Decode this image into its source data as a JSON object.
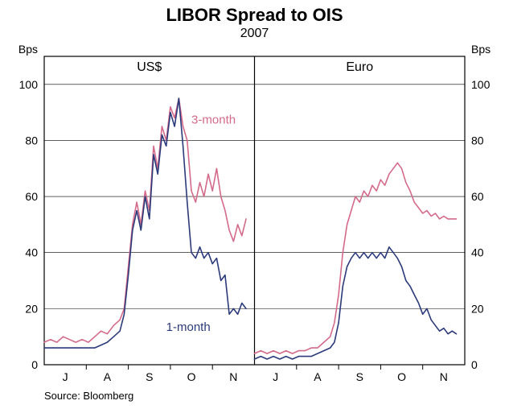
{
  "title": "LIBOR Spread to OIS",
  "subtitle": "2007",
  "source": "Source: Bloomberg",
  "y_axis_label": "Bps",
  "ylim": [
    0,
    110
  ],
  "ytick_step": 20,
  "y_ticks": [
    0,
    20,
    40,
    60,
    80,
    100
  ],
  "x_labels": [
    "J",
    "A",
    "S",
    "O",
    "N"
  ],
  "colors": {
    "three_month": "#d46a8a",
    "one_month": "#2b3a7a",
    "grid": "#000000",
    "frame": "#000000",
    "background": "#ffffff"
  },
  "line_width": 1.6,
  "title_fontsize": 22,
  "subtitle_fontsize": 16,
  "panel_title_fontsize": 16,
  "tick_fontsize": 14,
  "series_label_fontsize": 15,
  "panels": [
    {
      "title": "US$",
      "series": [
        {
          "name": "3-month",
          "label_text": "3-month",
          "label_color": "#d46a8a",
          "label_pos": [
            70,
            86
          ],
          "data": [
            [
              0,
              8
            ],
            [
              3,
              9
            ],
            [
              6,
              8
            ],
            [
              9,
              10
            ],
            [
              12,
              9
            ],
            [
              15,
              8
            ],
            [
              18,
              9
            ],
            [
              21,
              8
            ],
            [
              24,
              10
            ],
            [
              27,
              12
            ],
            [
              30,
              11
            ],
            [
              33,
              14
            ],
            [
              36,
              16
            ],
            [
              38,
              20
            ],
            [
              40,
              35
            ],
            [
              42,
              50
            ],
            [
              44,
              58
            ],
            [
              46,
              50
            ],
            [
              48,
              62
            ],
            [
              50,
              55
            ],
            [
              52,
              78
            ],
            [
              54,
              70
            ],
            [
              56,
              85
            ],
            [
              58,
              80
            ],
            [
              60,
              92
            ],
            [
              62,
              88
            ],
            [
              64,
              95
            ],
            [
              66,
              85
            ],
            [
              68,
              80
            ],
            [
              70,
              62
            ],
            [
              72,
              58
            ],
            [
              74,
              65
            ],
            [
              76,
              60
            ],
            [
              78,
              68
            ],
            [
              80,
              62
            ],
            [
              82,
              70
            ],
            [
              84,
              60
            ],
            [
              86,
              55
            ],
            [
              88,
              48
            ],
            [
              90,
              44
            ],
            [
              92,
              50
            ],
            [
              94,
              46
            ],
            [
              96,
              52
            ]
          ]
        },
        {
          "name": "1-month",
          "label_text": "1-month",
          "label_color": "#2b3a7a",
          "label_pos": [
            58,
            12
          ],
          "data": [
            [
              0,
              6
            ],
            [
              3,
              6
            ],
            [
              6,
              6
            ],
            [
              9,
              6
            ],
            [
              12,
              6
            ],
            [
              15,
              6
            ],
            [
              18,
              6
            ],
            [
              21,
              6
            ],
            [
              24,
              6
            ],
            [
              27,
              7
            ],
            [
              30,
              8
            ],
            [
              33,
              10
            ],
            [
              36,
              12
            ],
            [
              38,
              18
            ],
            [
              40,
              32
            ],
            [
              42,
              48
            ],
            [
              44,
              55
            ],
            [
              46,
              48
            ],
            [
              48,
              60
            ],
            [
              50,
              52
            ],
            [
              52,
              75
            ],
            [
              54,
              68
            ],
            [
              56,
              82
            ],
            [
              58,
              78
            ],
            [
              60,
              90
            ],
            [
              62,
              85
            ],
            [
              64,
              95
            ],
            [
              66,
              78
            ],
            [
              68,
              58
            ],
            [
              70,
              40
            ],
            [
              72,
              38
            ],
            [
              74,
              42
            ],
            [
              76,
              38
            ],
            [
              78,
              40
            ],
            [
              80,
              36
            ],
            [
              82,
              38
            ],
            [
              84,
              30
            ],
            [
              86,
              32
            ],
            [
              88,
              18
            ],
            [
              90,
              20
            ],
            [
              92,
              18
            ],
            [
              94,
              22
            ],
            [
              96,
              20
            ]
          ]
        }
      ]
    },
    {
      "title": "Euro",
      "series": [
        {
          "name": "3-month",
          "label_text": "",
          "data": [
            [
              0,
              4
            ],
            [
              3,
              5
            ],
            [
              6,
              4
            ],
            [
              9,
              5
            ],
            [
              12,
              4
            ],
            [
              15,
              5
            ],
            [
              18,
              4
            ],
            [
              21,
              5
            ],
            [
              24,
              5
            ],
            [
              27,
              6
            ],
            [
              30,
              6
            ],
            [
              33,
              8
            ],
            [
              36,
              10
            ],
            [
              38,
              15
            ],
            [
              40,
              25
            ],
            [
              42,
              40
            ],
            [
              44,
              50
            ],
            [
              46,
              55
            ],
            [
              48,
              60
            ],
            [
              50,
              58
            ],
            [
              52,
              62
            ],
            [
              54,
              60
            ],
            [
              56,
              64
            ],
            [
              58,
              62
            ],
            [
              60,
              66
            ],
            [
              62,
              64
            ],
            [
              64,
              68
            ],
            [
              66,
              70
            ],
            [
              68,
              72
            ],
            [
              70,
              70
            ],
            [
              72,
              65
            ],
            [
              74,
              62
            ],
            [
              76,
              58
            ],
            [
              78,
              56
            ],
            [
              80,
              54
            ],
            [
              82,
              55
            ],
            [
              84,
              53
            ],
            [
              86,
              54
            ],
            [
              88,
              52
            ],
            [
              90,
              53
            ],
            [
              92,
              52
            ],
            [
              94,
              52
            ],
            [
              96,
              52
            ]
          ]
        },
        {
          "name": "1-month",
          "label_text": "",
          "data": [
            [
              0,
              2
            ],
            [
              3,
              3
            ],
            [
              6,
              2
            ],
            [
              9,
              3
            ],
            [
              12,
              2
            ],
            [
              15,
              3
            ],
            [
              18,
              2
            ],
            [
              21,
              3
            ],
            [
              24,
              3
            ],
            [
              27,
              3
            ],
            [
              30,
              4
            ],
            [
              33,
              5
            ],
            [
              36,
              6
            ],
            [
              38,
              8
            ],
            [
              40,
              15
            ],
            [
              42,
              28
            ],
            [
              44,
              35
            ],
            [
              46,
              38
            ],
            [
              48,
              40
            ],
            [
              50,
              38
            ],
            [
              52,
              40
            ],
            [
              54,
              38
            ],
            [
              56,
              40
            ],
            [
              58,
              38
            ],
            [
              60,
              40
            ],
            [
              62,
              38
            ],
            [
              64,
              42
            ],
            [
              66,
              40
            ],
            [
              68,
              38
            ],
            [
              70,
              35
            ],
            [
              72,
              30
            ],
            [
              74,
              28
            ],
            [
              76,
              25
            ],
            [
              78,
              22
            ],
            [
              80,
              18
            ],
            [
              82,
              20
            ],
            [
              84,
              16
            ],
            [
              86,
              14
            ],
            [
              88,
              12
            ],
            [
              90,
              13
            ],
            [
              92,
              11
            ],
            [
              94,
              12
            ],
            [
              96,
              11
            ]
          ]
        }
      ]
    }
  ]
}
